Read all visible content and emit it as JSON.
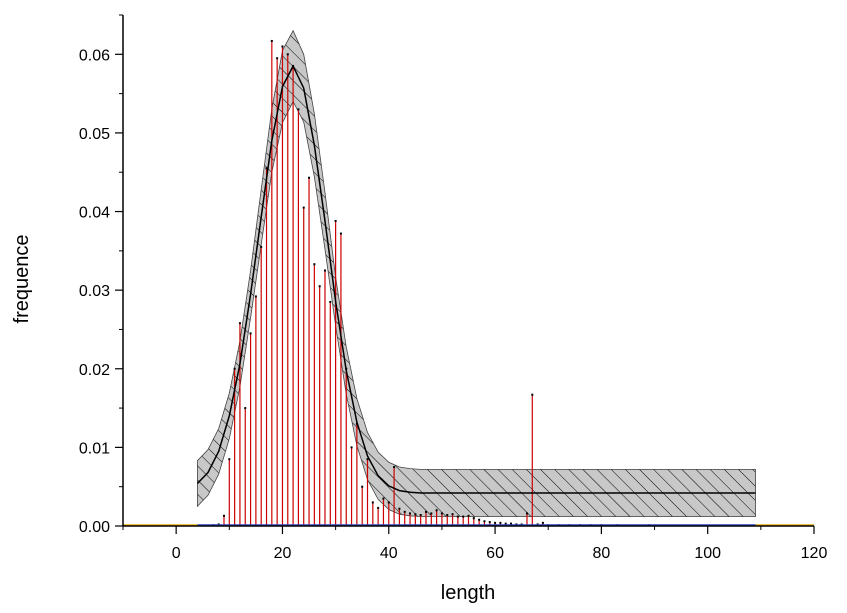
{
  "chart_data": {
    "type": "bar",
    "xlabel": "length",
    "ylabel": "frequence",
    "xlim": [
      -10,
      120
    ],
    "ylim": [
      0,
      0.065
    ],
    "x_ticks": [
      0,
      20,
      40,
      60,
      80,
      100,
      120
    ],
    "x_tick_labels": [
      "0",
      "20",
      "40",
      "60",
      "80",
      "100",
      "120"
    ],
    "y_ticks": [
      0,
      0.01,
      0.02,
      0.03,
      0.04,
      0.05,
      0.06
    ],
    "y_tick_labels": [
      "0.00",
      "0.01",
      "0.02",
      "0.03",
      "0.04",
      "0.05",
      "0.06"
    ],
    "grid": false,
    "series": [
      {
        "x": [
          7,
          8,
          9,
          10,
          11,
          12,
          13,
          14,
          15,
          16,
          17,
          18,
          19,
          20,
          21,
          22,
          23,
          24,
          25,
          26,
          27,
          28,
          29,
          30,
          31,
          32,
          33,
          34,
          35,
          36,
          37,
          38,
          39,
          40,
          41,
          42,
          43,
          44,
          45,
          46,
          47,
          48,
          49,
          50,
          51,
          52,
          53,
          54,
          55,
          56,
          57,
          58,
          59,
          60,
          61,
          62,
          63,
          64,
          65,
          66,
          67,
          68,
          69,
          70,
          72,
          74,
          76,
          78,
          80,
          83,
          89
        ],
        "values": [
          0.0001,
          0.0002,
          0.0013,
          0.0085,
          0.02,
          0.0258,
          0.015,
          0.0245,
          0.0292,
          0.0355,
          0.0455,
          0.0617,
          0.0595,
          0.061,
          0.06,
          0.0585,
          0.053,
          0.0405,
          0.0443,
          0.0333,
          0.0305,
          0.0325,
          0.0285,
          0.0388,
          0.0372,
          0.02,
          0.01,
          0.013,
          0.005,
          0.0085,
          0.003,
          0.0023,
          0.0035,
          0.003,
          0.0075,
          0.0022,
          0.0018,
          0.0016,
          0.0015,
          0.0014,
          0.0018,
          0.0016,
          0.002,
          0.0016,
          0.0014,
          0.0015,
          0.0012,
          0.0012,
          0.0013,
          0.001,
          0.0008,
          0.0006,
          0.0005,
          0.0004,
          0.0004,
          0.0003,
          0.0003,
          0.0002,
          0.0002,
          0.0016,
          0.0167,
          0.0002,
          0.0004,
          0.0001,
          0.0001,
          0.0001,
          0.0001,
          0.0001,
          0.0001,
          0.0001,
          0.0001
        ]
      },
      {
        "type": "line",
        "x": [
          4,
          6,
          8,
          10,
          12,
          14,
          16,
          18,
          20,
          22,
          24,
          26,
          28,
          30,
          32,
          34,
          36,
          38,
          40,
          42,
          44,
          46,
          48,
          50,
          60,
          70,
          80,
          90,
          100,
          109
        ],
        "values": [
          0.0054,
          0.0068,
          0.0095,
          0.014,
          0.0206,
          0.0295,
          0.0393,
          0.049,
          0.0559,
          0.0585,
          0.0557,
          0.0484,
          0.0388,
          0.0286,
          0.0198,
          0.0132,
          0.0089,
          0.0064,
          0.0051,
          0.0045,
          0.0043,
          0.0042,
          0.0042,
          0.0042,
          0.0042,
          0.0042,
          0.0042,
          0.0042,
          0.0042,
          0.0042
        ]
      },
      {
        "type": "area",
        "x": [
          4,
          6,
          8,
          10,
          12,
          14,
          16,
          18,
          20,
          22,
          24,
          26,
          28,
          30,
          32,
          34,
          36,
          38,
          40,
          42,
          44,
          46,
          48,
          50,
          60,
          70,
          80,
          90,
          100,
          109
        ],
        "upper": [
          0.0083,
          0.0097,
          0.0124,
          0.0169,
          0.0235,
          0.0325,
          0.0428,
          0.053,
          0.0605,
          0.063,
          0.06,
          0.0524,
          0.0424,
          0.0317,
          0.0228,
          0.0162,
          0.0119,
          0.0094,
          0.0081,
          0.0075,
          0.0073,
          0.0072,
          0.0072,
          0.0072,
          0.0072,
          0.0072,
          0.0072,
          0.0072,
          0.0072,
          0.0072
        ],
        "lower": [
          0.0025,
          0.0039,
          0.0066,
          0.0111,
          0.0177,
          0.0265,
          0.0358,
          0.045,
          0.0513,
          0.054,
          0.0514,
          0.0444,
          0.0352,
          0.0255,
          0.0168,
          0.0102,
          0.0059,
          0.0034,
          0.0021,
          0.0015,
          0.0013,
          0.0012,
          0.0012,
          0.0012,
          0.0012,
          0.0012,
          0.0012,
          0.0012,
          0.0012,
          0.0012
        ]
      }
    ],
    "colors": {
      "bars": "#cc0000",
      "dots": "#000000",
      "fit_line": "#000000",
      "band_fill": "#c8c8c8",
      "band_hatch": "#000000",
      "baseline_left": "#e6a800",
      "baseline_mid": "#2a3fbf",
      "axes": "#000000"
    }
  }
}
